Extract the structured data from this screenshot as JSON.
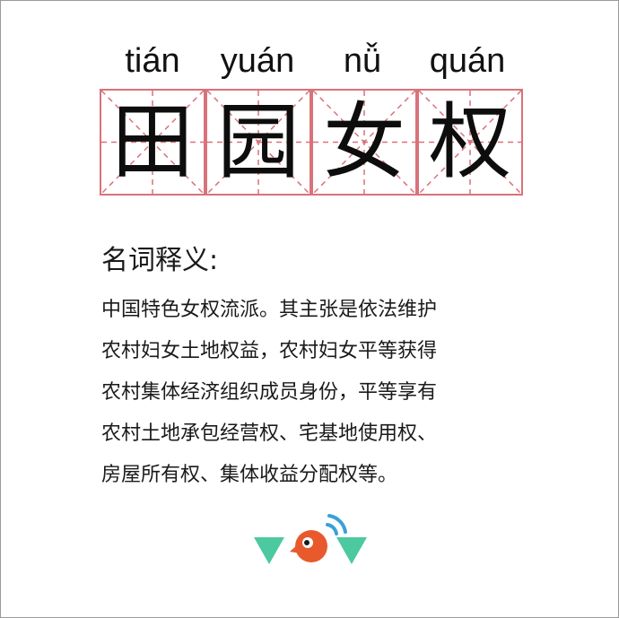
{
  "pinyin": [
    "tián",
    "yuán",
    "nǚ",
    "quán"
  ],
  "characters": [
    "田",
    "园",
    "女",
    "权"
  ],
  "section_heading": "名词释义:",
  "definition_lines": [
    "中国特色女权流派。其主张是依法维护",
    "农村妇女土地权益，农村妇女平等获得",
    "农村集体经济组织成员身份，平等享有",
    "农村土地承包经营权、宅基地使用权、",
    "房屋所有权、集体收益分配权等。"
  ],
  "colors": {
    "grid_line": "#d9727a",
    "logo_green": "#4cc9a0",
    "logo_orange": "#e85a2c",
    "logo_blue": "#3aa0d8"
  },
  "logo_icon": "wow-bird-logo-icon"
}
